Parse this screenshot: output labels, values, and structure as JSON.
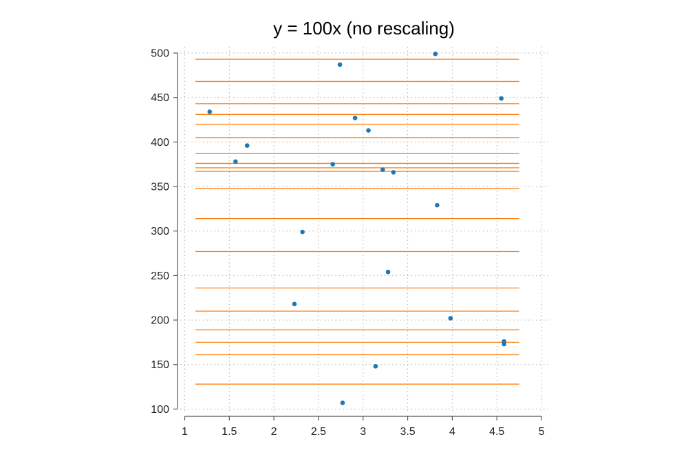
{
  "chart_data": {
    "type": "scatter",
    "title": "y = 100x (no rescaling)",
    "xlabel": "",
    "ylabel": "",
    "xlim": [
      0.95,
      5.1
    ],
    "ylim": [
      98,
      507
    ],
    "grid": true,
    "x_ticks": [
      1,
      1.5,
      2,
      2.5,
      3,
      3.5,
      4,
      4.5,
      5
    ],
    "x_tick_labels": [
      "1",
      "1.5",
      "2",
      "2.5",
      "3",
      "3.5",
      "4",
      "4.5",
      "5"
    ],
    "y_ticks": [
      100,
      150,
      200,
      250,
      300,
      350,
      400,
      450,
      500
    ],
    "y_tick_labels": [
      "100",
      "150",
      "200",
      "250",
      "300",
      "350",
      "400",
      "450",
      "500"
    ],
    "colors": {
      "points": "#1f77b4",
      "lines": "#ff7f0e",
      "grid": "#b0b0b0",
      "axis": "#555555"
    },
    "points": [
      {
        "x": 1.28,
        "y": 434
      },
      {
        "x": 1.57,
        "y": 378
      },
      {
        "x": 1.7,
        "y": 396
      },
      {
        "x": 2.23,
        "y": 218
      },
      {
        "x": 2.32,
        "y": 299
      },
      {
        "x": 2.66,
        "y": 375
      },
      {
        "x": 2.74,
        "y": 487
      },
      {
        "x": 2.77,
        "y": 107
      },
      {
        "x": 2.91,
        "y": 427
      },
      {
        "x": 3.06,
        "y": 413
      },
      {
        "x": 3.14,
        "y": 148
      },
      {
        "x": 3.22,
        "y": 369
      },
      {
        "x": 3.28,
        "y": 254
      },
      {
        "x": 3.34,
        "y": 366
      },
      {
        "x": 3.81,
        "y": 499
      },
      {
        "x": 3.83,
        "y": 329
      },
      {
        "x": 3.98,
        "y": 202
      },
      {
        "x": 4.55,
        "y": 449
      },
      {
        "x": 4.58,
        "y": 176
      },
      {
        "x": 4.58,
        "y": 173
      }
    ],
    "hlines": {
      "x_range": [
        1.12,
        4.75
      ],
      "y": [
        128,
        161,
        175,
        189,
        210,
        236,
        277,
        314,
        348,
        367,
        371,
        376,
        387,
        405,
        420,
        431,
        443,
        468,
        493
      ]
    }
  }
}
